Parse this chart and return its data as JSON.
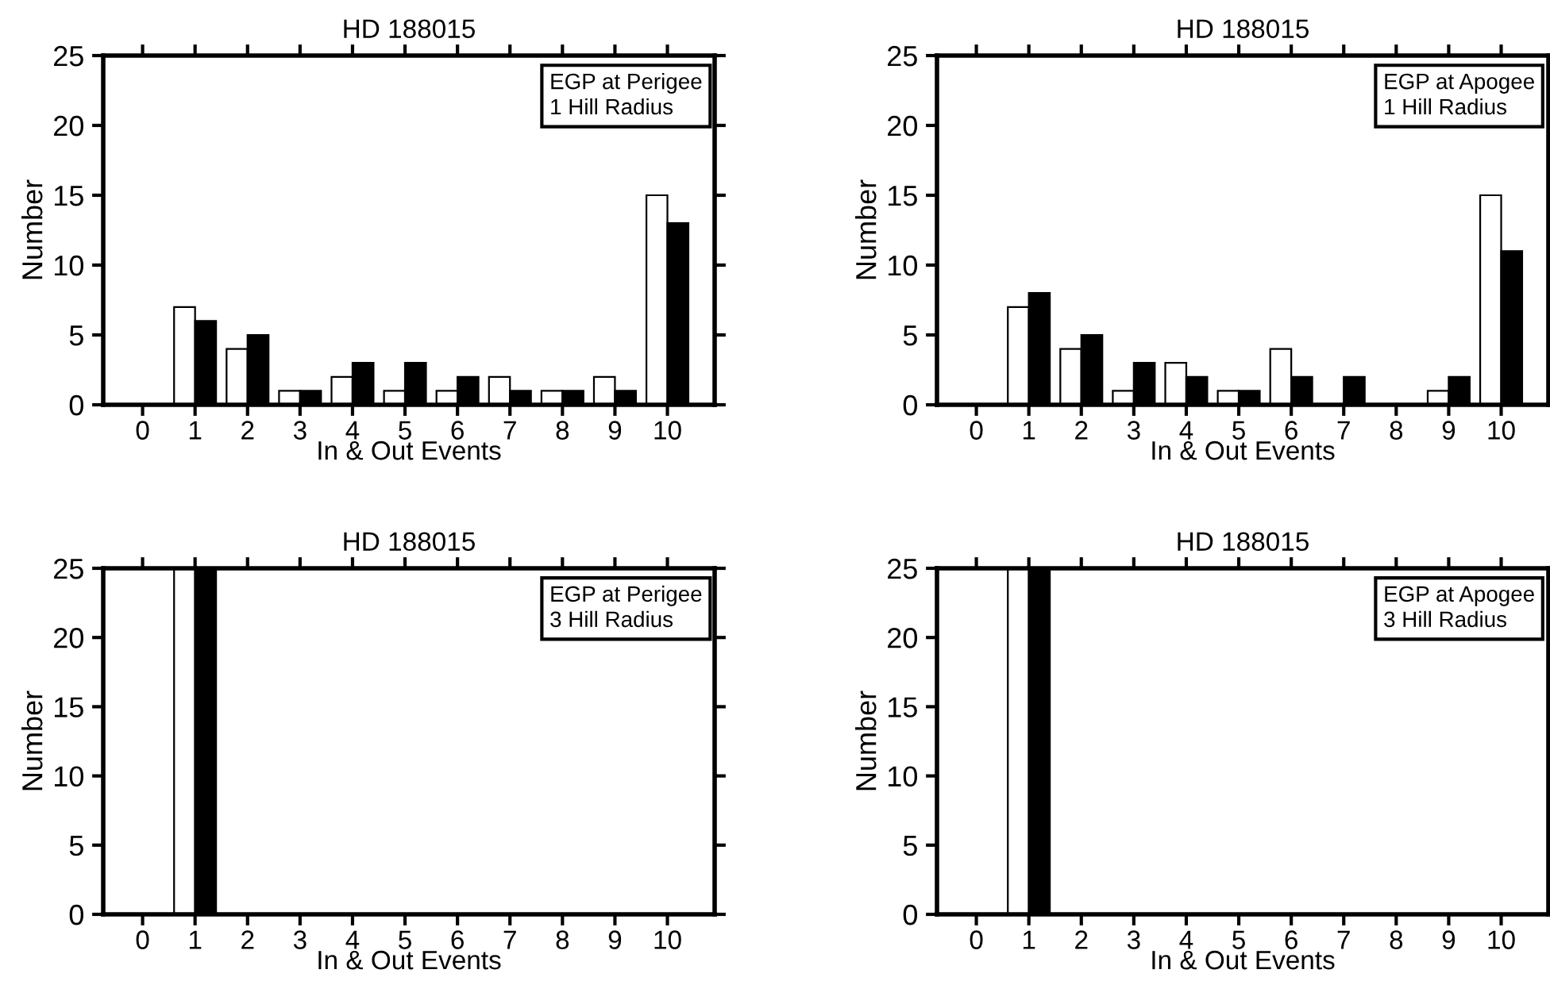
{
  "chart_data": [
    {
      "type": "bar",
      "title": "HD 188015",
      "xlabel": "In & Out Events",
      "ylabel": "Number",
      "categories": [
        "0",
        "1",
        "2",
        "3",
        "4",
        "5",
        "6",
        "7",
        "8",
        "9",
        "10"
      ],
      "ylim": [
        0,
        25
      ],
      "yticks": [
        0,
        5,
        10,
        15,
        20,
        25
      ],
      "grid": false,
      "annotations": [
        "EGP at Perigee\n1 Hill Radius"
      ],
      "series": [
        {
          "color": "#ffffff",
          "values": [
            0,
            7,
            4,
            1,
            2,
            1,
            1,
            2,
            1,
            2,
            15
          ]
        },
        {
          "color": "#000000",
          "values": [
            0,
            6,
            5,
            1,
            3,
            3,
            2,
            1,
            1,
            1,
            13
          ]
        }
      ]
    },
    {
      "type": "bar",
      "title": "HD 188015",
      "xlabel": "In & Out Events",
      "ylabel": "Number",
      "categories": [
        "0",
        "1",
        "2",
        "3",
        "4",
        "5",
        "6",
        "7",
        "8",
        "9",
        "10"
      ],
      "ylim": [
        0,
        25
      ],
      "yticks": [
        0,
        5,
        10,
        15,
        20,
        25
      ],
      "grid": false,
      "annotations": [
        "EGP at Apogee\n1 Hill Radius"
      ],
      "series": [
        {
          "color": "#ffffff",
          "values": [
            0,
            7,
            4,
            1,
            3,
            1,
            4,
            0,
            0,
            1,
            15
          ]
        },
        {
          "color": "#000000",
          "values": [
            0,
            8,
            5,
            3,
            2,
            1,
            2,
            2,
            0,
            2,
            11
          ]
        }
      ]
    },
    {
      "type": "bar",
      "title": "HD 188015",
      "xlabel": "In & Out Events",
      "ylabel": "Number",
      "categories": [
        "0",
        "1",
        "2",
        "3",
        "4",
        "5",
        "6",
        "7",
        "8",
        "9",
        "10"
      ],
      "ylim": [
        0,
        25
      ],
      "yticks": [
        0,
        5,
        10,
        15,
        20,
        25
      ],
      "grid": false,
      "annotations": [
        "EGP at Perigee\n3 Hill Radius"
      ],
      "series": [
        {
          "color": "#ffffff",
          "values": [
            0,
            25,
            0,
            0,
            0,
            0,
            0,
            0,
            0,
            0,
            0
          ]
        },
        {
          "color": "#000000",
          "values": [
            0,
            25,
            0,
            0,
            0,
            0,
            0,
            0,
            0,
            0,
            0
          ]
        }
      ]
    },
    {
      "type": "bar",
      "title": "HD 188015",
      "xlabel": "In & Out Events",
      "ylabel": "Number",
      "categories": [
        "0",
        "1",
        "2",
        "3",
        "4",
        "5",
        "6",
        "7",
        "8",
        "9",
        "10"
      ],
      "ylim": [
        0,
        25
      ],
      "yticks": [
        0,
        5,
        10,
        15,
        20,
        25
      ],
      "grid": false,
      "annotations": [
        "EGP at Apogee\n3 Hill Radius"
      ],
      "series": [
        {
          "color": "#ffffff",
          "values": [
            0,
            25,
            0,
            0,
            0,
            0,
            0,
            0,
            0,
            0,
            0
          ]
        },
        {
          "color": "#000000",
          "values": [
            0,
            25,
            0,
            0,
            0,
            0,
            0,
            0,
            0,
            0,
            0
          ]
        }
      ]
    }
  ]
}
